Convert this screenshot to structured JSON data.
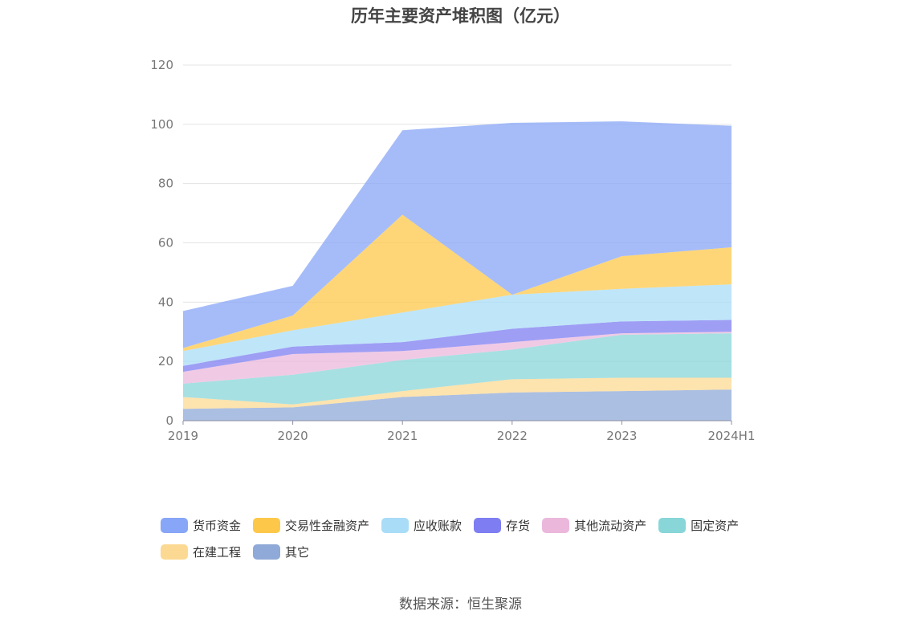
{
  "title": "历年主要资产堆积图（亿元）",
  "source": "数据来源：恒生聚源",
  "chart_data": {
    "type": "area",
    "stacked": true,
    "categories": [
      "2019",
      "2020",
      "2021",
      "2022",
      "2023",
      "2024H1"
    ],
    "ylim": [
      0,
      120
    ],
    "yticks": [
      0,
      20,
      40,
      60,
      80,
      100,
      120
    ],
    "grid": true,
    "legend_position": "bottom",
    "series": [
      {
        "name": "其它",
        "color": "#8fa9d8",
        "values": [
          4.0,
          4.5,
          8.0,
          9.5,
          10.0,
          10.5
        ]
      },
      {
        "name": "在建工程",
        "color": "#fcd993",
        "values": [
          4.0,
          1.0,
          2.0,
          4.5,
          4.5,
          4.0
        ]
      },
      {
        "name": "固定资产",
        "color": "#88d6d8",
        "values": [
          4.5,
          10.0,
          10.5,
          10.0,
          14.5,
          15.0
        ]
      },
      {
        "name": "其他流动资产",
        "color": "#ebb8dc",
        "values": [
          4.0,
          7.0,
          3.0,
          2.5,
          0.5,
          0.5
        ]
      },
      {
        "name": "存货",
        "color": "#7e7ef2",
        "values": [
          2.0,
          2.5,
          3.0,
          4.5,
          4.0,
          4.0
        ]
      },
      {
        "name": "应收账款",
        "color": "#a9dcf7",
        "values": [
          5.0,
          5.5,
          10.0,
          11.5,
          11.0,
          12.0
        ]
      },
      {
        "name": "交易性金融资产",
        "color": "#fdc84a",
        "values": [
          1.0,
          5.0,
          33.0,
          0.0,
          11.0,
          12.5
        ]
      },
      {
        "name": "货币资金",
        "color": "#88a6f7",
        "values": [
          12.5,
          10.0,
          28.5,
          58.0,
          45.5,
          41.0
        ]
      }
    ]
  },
  "legend": {
    "row1": [
      {
        "label": "货币资金",
        "color": "#88a6f7"
      },
      {
        "label": "交易性金融资产",
        "color": "#fdc84a"
      },
      {
        "label": "应收账款",
        "color": "#a9dcf7"
      },
      {
        "label": "存货",
        "color": "#7e7ef2"
      },
      {
        "label": "其他流动资产",
        "color": "#ebb8dc"
      },
      {
        "label": "固定资产",
        "color": "#88d6d8"
      }
    ],
    "row2": [
      {
        "label": "在建工程",
        "color": "#fcd993"
      },
      {
        "label": "其它",
        "color": "#8fa9d8"
      }
    ]
  }
}
